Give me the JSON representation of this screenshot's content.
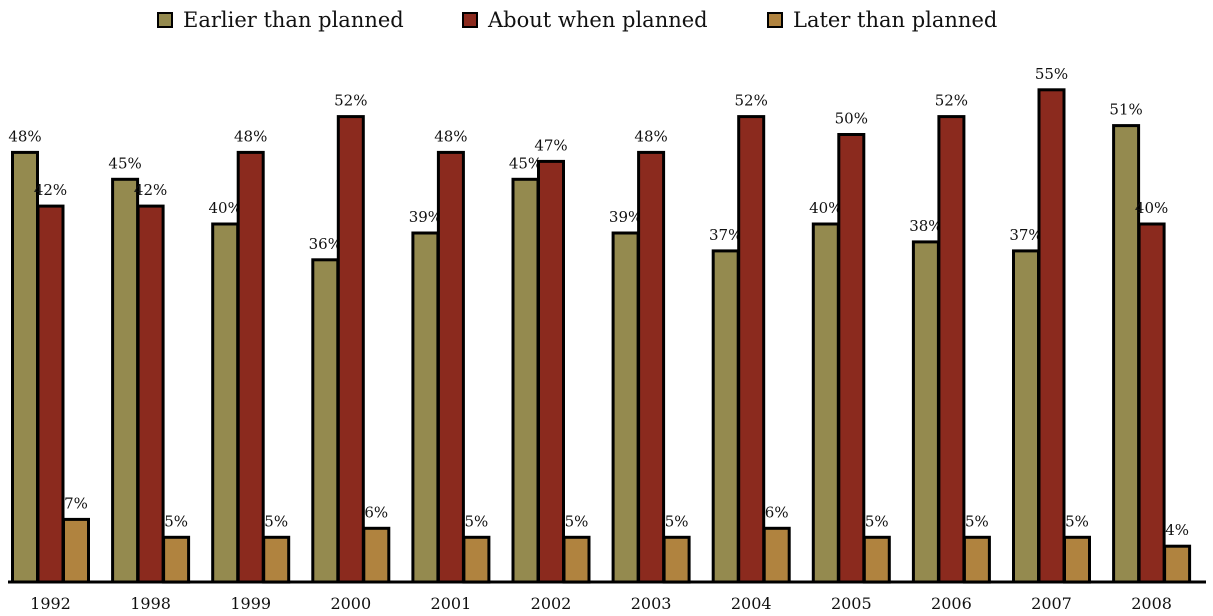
{
  "chart_data": {
    "type": "bar",
    "title": "",
    "xlabel": "",
    "ylabel": "",
    "ylim": [
      0,
      55
    ],
    "grid": false,
    "legend_position": "top-center",
    "categories": [
      "1992",
      "1998",
      "1999",
      "2000",
      "2001",
      "2002",
      "2003",
      "2004",
      "2005",
      "2006",
      "2007",
      "2008"
    ],
    "series": [
      {
        "name": "Earlier than planned",
        "color": "#948a4f",
        "values": [
          48,
          45,
          40,
          36,
          39,
          45,
          39,
          37,
          40,
          38,
          37,
          51
        ],
        "labels": [
          "48%",
          "45%",
          "40%",
          "36%",
          "39%",
          "45%",
          "39%",
          "37%",
          "40%",
          "38%",
          "37%",
          "51%"
        ]
      },
      {
        "name": "About when planned",
        "color": "#8b2a1e",
        "values": [
          42,
          42,
          48,
          52,
          48,
          47,
          48,
          52,
          50,
          52,
          55,
          40
        ],
        "labels": [
          "42%",
          "42%",
          "48%",
          "52%",
          "48%",
          "47%",
          "48%",
          "52%",
          "50%",
          "52%",
          "55%",
          "40%"
        ]
      },
      {
        "name": "Later than planned",
        "color": "#b0833f",
        "values": [
          7,
          5,
          5,
          6,
          5,
          5,
          5,
          6,
          5,
          5,
          5,
          4
        ],
        "labels": [
          "7%",
          "5%",
          "5%",
          "6%",
          "5%",
          "5%",
          "5%",
          "6%",
          "5%",
          "5%",
          "5%",
          "4%"
        ]
      }
    ]
  }
}
